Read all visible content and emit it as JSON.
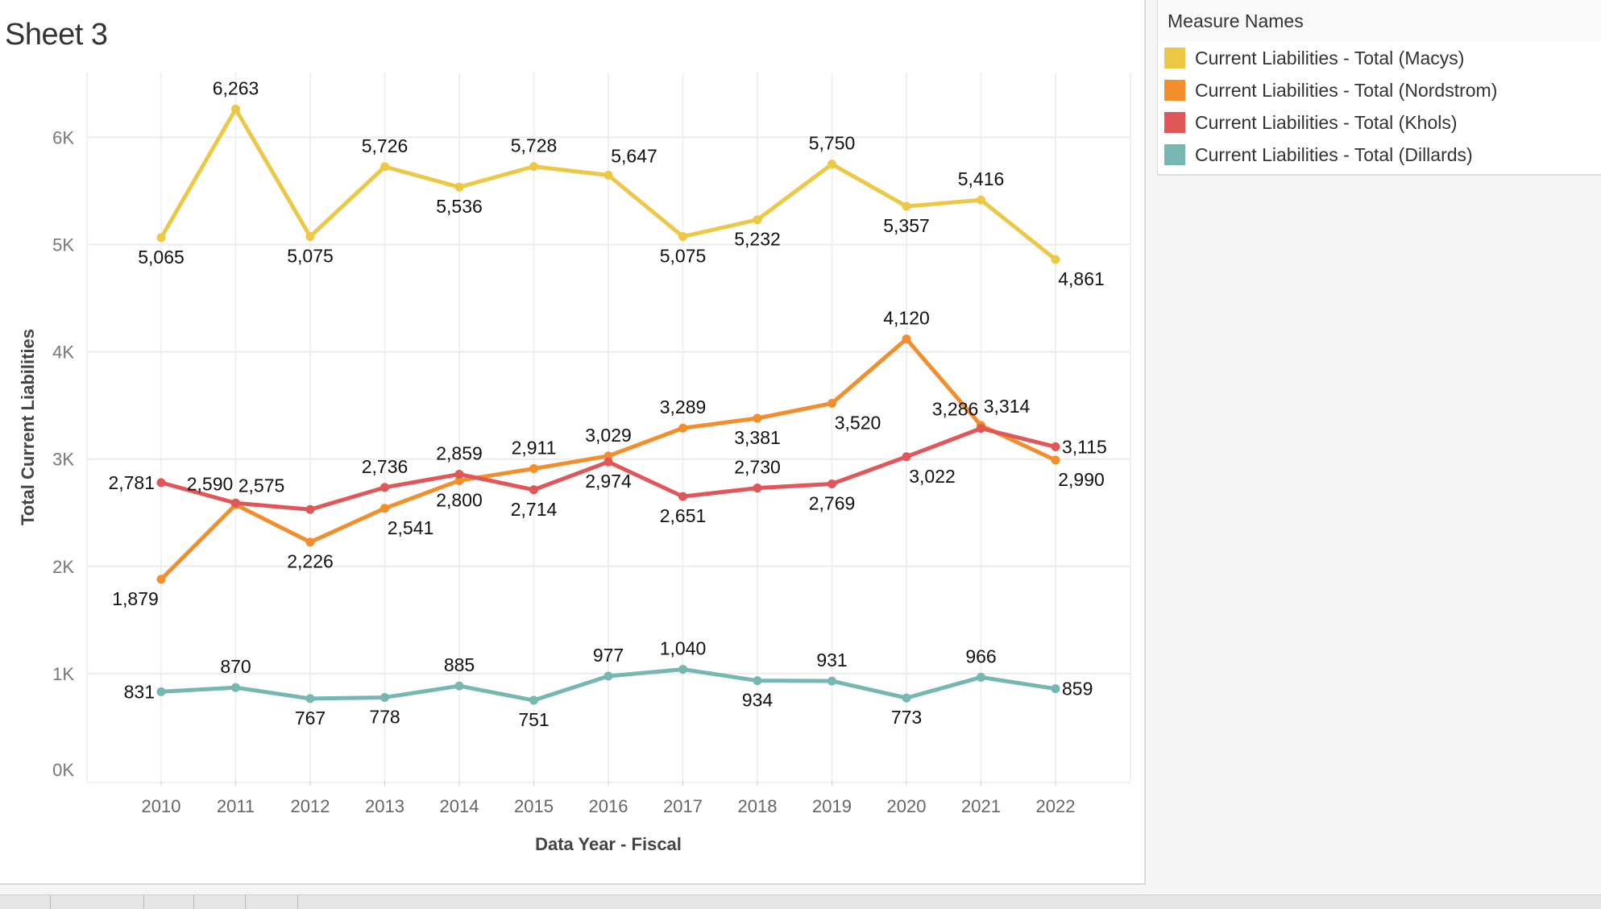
{
  "sheet_title": "Sheet 3",
  "legend": {
    "title": "Measure Names",
    "items": [
      {
        "label": "Current Liabilities - Total (Macys)",
        "color": "#ecc846"
      },
      {
        "label": "Current Liabilities - Total (Nordstrom)",
        "color": "#f28e2b"
      },
      {
        "label": "Current Liabilities - Total (Khols)",
        "color": "#e15759"
      },
      {
        "label": "Current Liabilities - Total (Dillards)",
        "color": "#76b7b2"
      }
    ]
  },
  "chart_data": {
    "type": "line",
    "title": "Sheet 3",
    "xlabel": "Data Year - Fiscal",
    "ylabel": "Total Current Liabilities",
    "categories": [
      "2010",
      "2011",
      "2012",
      "2013",
      "2014",
      "2015",
      "2016",
      "2017",
      "2018",
      "2019",
      "2020",
      "2021",
      "2022"
    ],
    "yticks": [
      0,
      1000,
      2000,
      3000,
      4000,
      5000,
      6000
    ],
    "ytick_labels": [
      "0K",
      "1K",
      "2K",
      "3K",
      "4K",
      "5K",
      "6K"
    ],
    "ylim": [
      0,
      6600
    ],
    "grid": true,
    "legend_placement": "right",
    "series": [
      {
        "name": "Current Liabilities - Total (Macys)",
        "color": "#ecc846",
        "values": [
          5065,
          6263,
          5075,
          5726,
          5536,
          5728,
          5647,
          5075,
          5232,
          5750,
          5357,
          5416,
          4861
        ],
        "labels": [
          "5,065",
          "6,263",
          "5,075",
          "5,726",
          "5,536",
          "5,728",
          "5,647",
          "5,075",
          "5,232",
          "5,750",
          "5,357",
          "5,416",
          "4,861"
        ]
      },
      {
        "name": "Current Liabilities - Total (Nordstrom)",
        "color": "#f28e2b",
        "values": [
          1879,
          2575,
          2226,
          2541,
          2800,
          2911,
          3029,
          3289,
          3381,
          3520,
          4120,
          3314,
          2990
        ],
        "labels": [
          "1,879",
          "2,575",
          "2,226",
          "2,541",
          "2,800",
          "2,911",
          "3,029",
          "3,289",
          "3,381",
          "3,520",
          "4,120",
          "3,314",
          "2,990"
        ]
      },
      {
        "name": "Current Liabilities - Total (Khols)",
        "color": "#e15759",
        "values": [
          2781,
          2590,
          2530,
          2736,
          2859,
          2714,
          2974,
          2651,
          2730,
          2769,
          3022,
          3286,
          3115
        ],
        "labels": [
          "2,781",
          "2,590",
          "",
          "2,736",
          "2,859",
          "2,714",
          "2,974",
          "2,651",
          "2,730",
          "2,769",
          "3,022",
          "3,286",
          "3,115"
        ]
      },
      {
        "name": "Current Liabilities - Total (Dillards)",
        "color": "#76b7b2",
        "values": [
          831,
          870,
          767,
          778,
          885,
          751,
          977,
          1040,
          934,
          931,
          773,
          966,
          859
        ],
        "labels": [
          "831",
          "870",
          "767",
          "778",
          "885",
          "751",
          "977",
          "1,040",
          "934",
          "931",
          "773",
          "966",
          "859"
        ]
      }
    ]
  }
}
